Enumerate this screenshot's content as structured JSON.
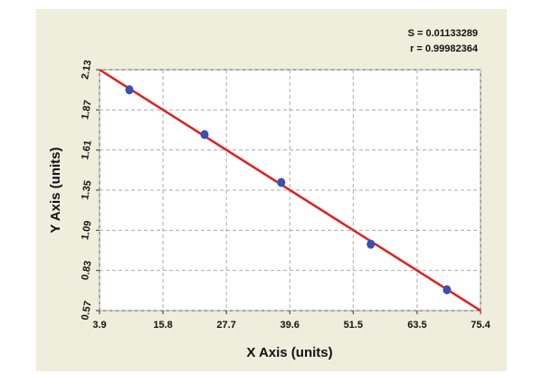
{
  "chart_data": {
    "type": "scatter",
    "x_label": "X Axis (units)",
    "y_label": "Y Axis (units)",
    "annotations": [
      "S = 0.01133289",
      "r = 0.99982364"
    ],
    "series": [
      {
        "color": "#3b4fb0",
        "x": [
          9.5,
          23.6,
          38.0,
          54.8,
          69.1
        ],
        "values": [
          2.0,
          1.71,
          1.4,
          1.0,
          0.705
        ]
      }
    ],
    "fit_line": {
      "color": "#e0201c",
      "x": [
        3.9,
        75.4
      ],
      "values": [
        2.13,
        0.57
      ]
    },
    "xlim": [
      3.9,
      75.4
    ],
    "xticks": [
      3.9,
      15.8,
      27.7,
      39.6,
      51.5,
      63.5,
      75.4
    ],
    "ylim": [
      0.57,
      2.13
    ],
    "yticks": [
      0.57,
      0.83,
      1.09,
      1.35,
      1.61,
      1.87,
      2.13
    ],
    "grid": true
  }
}
